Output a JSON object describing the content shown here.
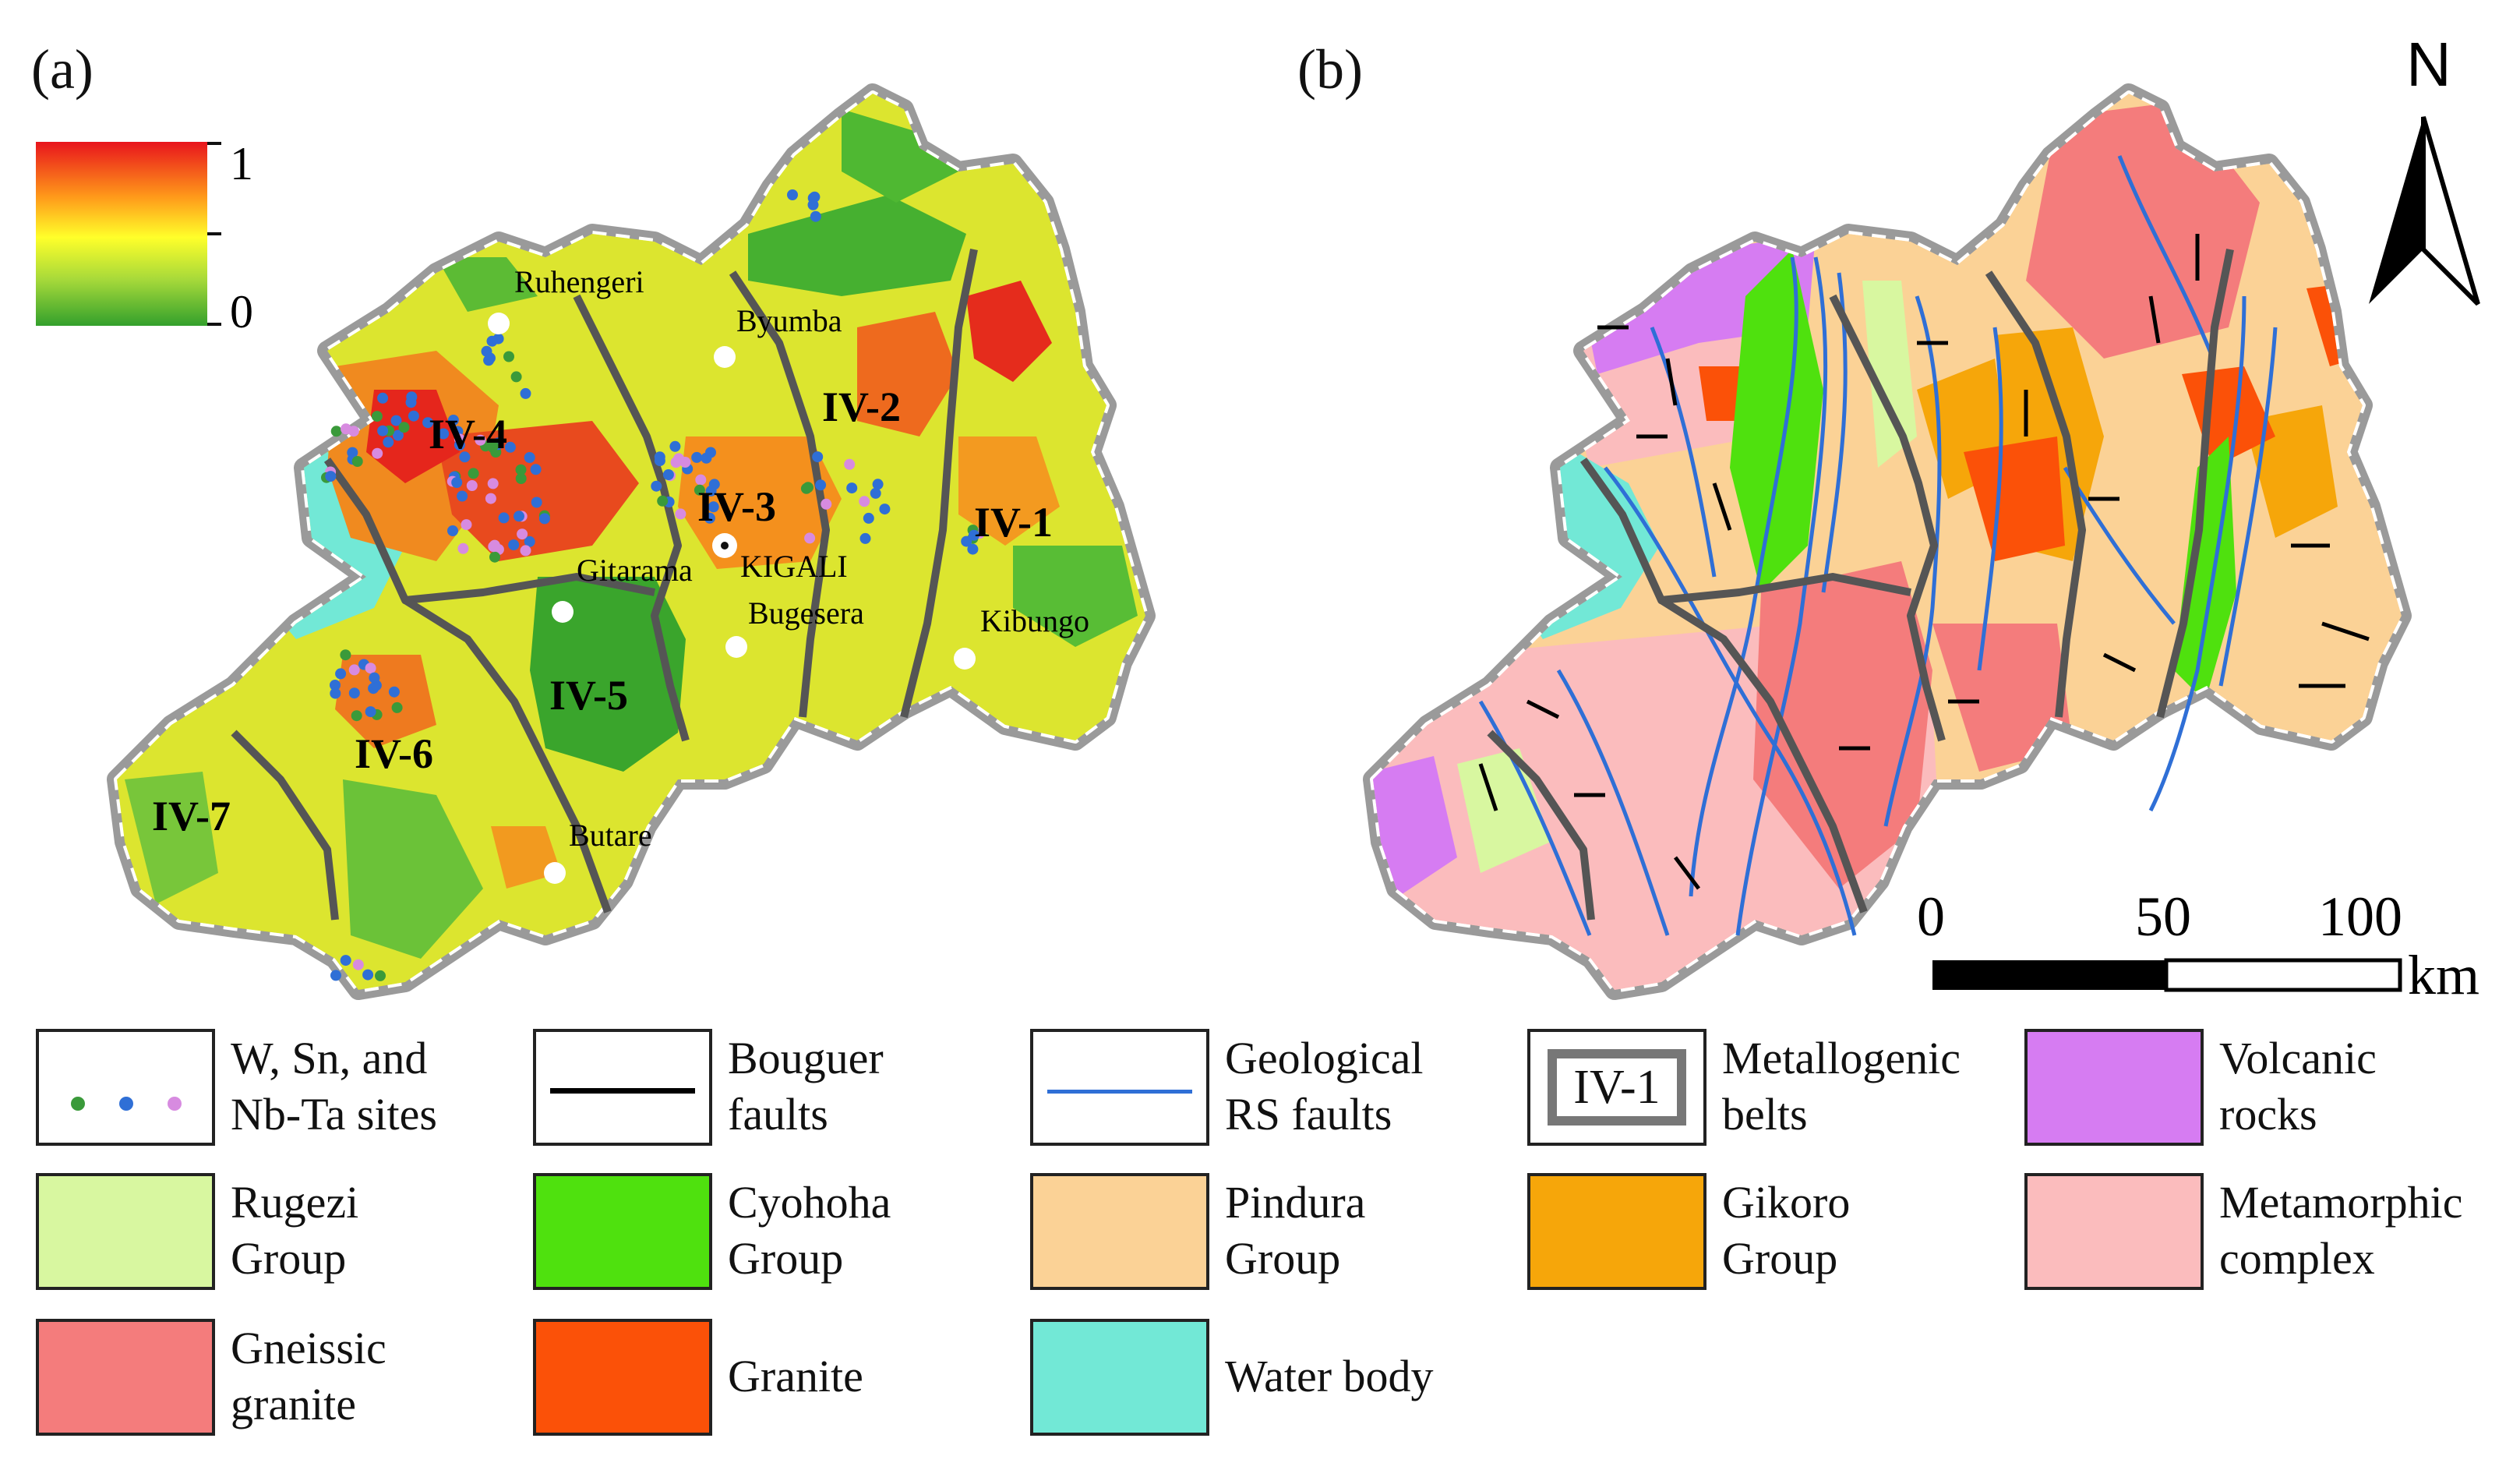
{
  "panels": {
    "a": "(a)",
    "b": "(b)"
  },
  "colorbar": {
    "max_label": "1",
    "min_label": "0",
    "stops": [
      "#e8141c",
      "#ff9a1a",
      "#ffff2a",
      "#a6d93a",
      "#33a02c"
    ]
  },
  "cities": [
    {
      "name": "Ruhengeri"
    },
    {
      "name": "Byumba"
    },
    {
      "name": "Gitarama"
    },
    {
      "name": "KIGALI"
    },
    {
      "name": "Bugesera"
    },
    {
      "name": "Kibungo"
    },
    {
      "name": "Butare"
    }
  ],
  "belts": [
    {
      "label": "IV-1"
    },
    {
      "label": "IV-2"
    },
    {
      "label": "IV-3"
    },
    {
      "label": "IV-4"
    },
    {
      "label": "IV-5"
    },
    {
      "label": "IV-6"
    },
    {
      "label": "IV-7"
    }
  ],
  "north_arrow": {
    "label": "N"
  },
  "scale_bar": {
    "ticks": [
      "0",
      "50",
      "100"
    ],
    "unit": "km"
  },
  "site_colors": {
    "W": "#3a9a3a",
    "Sn": "#2f6fd6",
    "NbTa": "#d78be0"
  },
  "legend": [
    {
      "label": "W, Sn, and\nNb-Ta sites",
      "kind": "sites"
    },
    {
      "label": "Bouguer\nfaults",
      "kind": "line",
      "color": "#000000"
    },
    {
      "label": "Geological\nRS faults",
      "kind": "line",
      "color": "#2f6fd6"
    },
    {
      "label": "Metallogenic\nbelts",
      "kind": "belt",
      "sample": "IV-1"
    },
    {
      "label": "Volcanic\nrocks",
      "kind": "fill",
      "color": "#d67cf2"
    },
    {
      "label": "Rugezi\nGroup",
      "kind": "fill",
      "color": "#d8f7a0"
    },
    {
      "label": "Cyohoha\nGroup",
      "kind": "fill",
      "color": "#4fe10e"
    },
    {
      "label": "Pindura\nGroup",
      "kind": "fill",
      "color": "#fbd296"
    },
    {
      "label": "Gikoro\nGroup",
      "kind": "fill",
      "color": "#f6a60a"
    },
    {
      "label": "Metamorphic\ncomplex",
      "kind": "fill",
      "color": "#fbbcbd"
    },
    {
      "label": "Gneissic\ngranite",
      "kind": "fill",
      "color": "#f47c7c"
    },
    {
      "label": "Granite",
      "kind": "fill",
      "color": "#fb5108"
    },
    {
      "label": "Water body",
      "kind": "fill",
      "color": "#72e8d6"
    }
  ]
}
